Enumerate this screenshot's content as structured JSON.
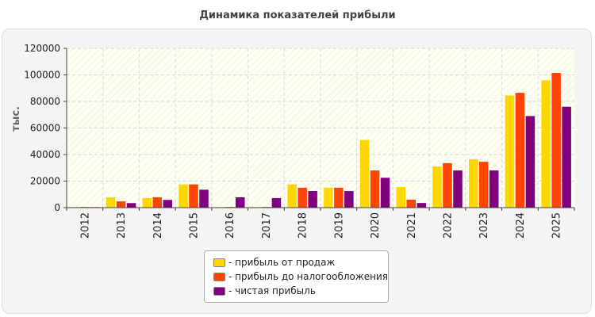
{
  "chart_data": {
    "type": "bar",
    "title": "Динамика показателей прибыли",
    "ylabel": "тыс.",
    "xlabel": "",
    "ylim": [
      0,
      120000
    ],
    "yticks": [
      0,
      20000,
      40000,
      60000,
      80000,
      100000,
      120000
    ],
    "grid": true,
    "legend_position": "bottom",
    "categories": [
      "2012",
      "2013",
      "2014",
      "2015",
      "2016",
      "2017",
      "2018",
      "2019",
      "2020",
      "2021",
      "2022",
      "2023",
      "2024",
      "2025"
    ],
    "series": [
      {
        "name": "- прибыль от продаж",
        "color": "#ffd700",
        "values": [
          500,
          7800,
          7200,
          17500,
          500,
          500,
          17500,
          15000,
          51000,
          15500,
          31000,
          36500,
          84500,
          96000
        ]
      },
      {
        "name": "- прибыль до налогообложения",
        "color": "#ff4500",
        "values": [
          500,
          4700,
          7800,
          17500,
          500,
          500,
          15000,
          15000,
          28000,
          6000,
          33500,
          34500,
          86500,
          101500
        ]
      },
      {
        "name": "- чистая прибыль",
        "color": "#800080",
        "values": [
          400,
          3400,
          5800,
          13500,
          7800,
          7200,
          12500,
          12500,
          22500,
          3500,
          28000,
          28000,
          69000,
          76000
        ]
      }
    ]
  }
}
